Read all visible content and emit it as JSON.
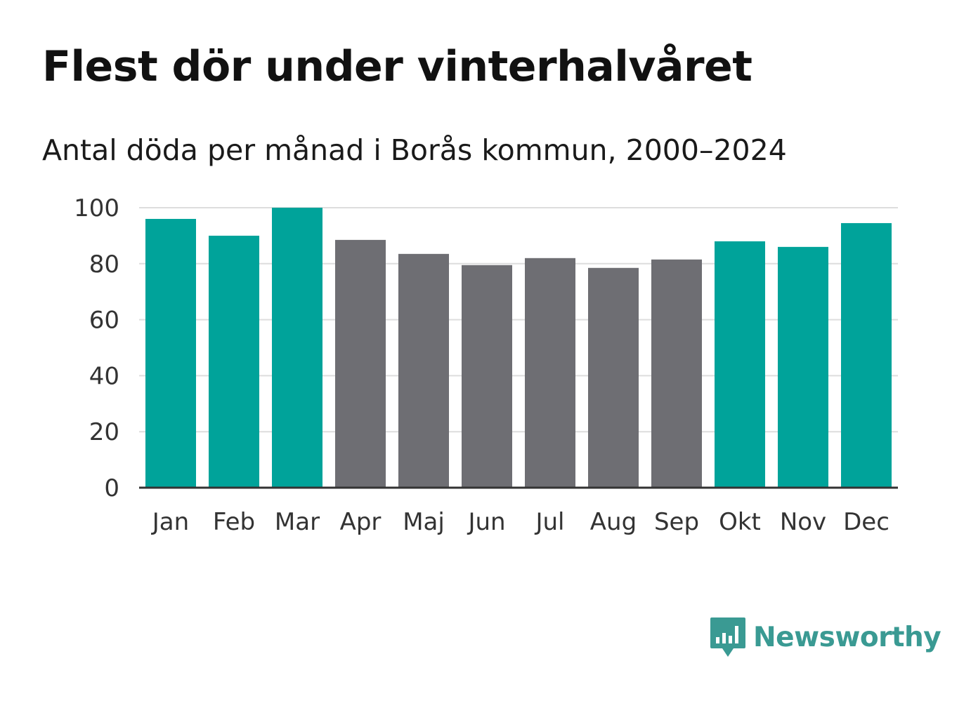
{
  "colors": {
    "winter": "#00a39a",
    "summer": "#6e6e73",
    "grid": "#dddddd",
    "axis": "#333333",
    "logo": "#3a9a93"
  },
  "chart_data": {
    "type": "bar",
    "title": "Flest dör under vinterhalvåret",
    "subtitle": "Antal döda per månad i Borås kommun, 2000–2024",
    "categories": [
      "Jan",
      "Feb",
      "Mar",
      "Apr",
      "Maj",
      "Jun",
      "Jul",
      "Aug",
      "Sep",
      "Okt",
      "Nov",
      "Dec"
    ],
    "values": [
      96,
      90,
      100,
      88.5,
      83.5,
      79.5,
      82,
      78.5,
      81.5,
      88,
      86,
      94.5
    ],
    "groups": [
      "winter",
      "winter",
      "winter",
      "summer",
      "summer",
      "summer",
      "summer",
      "summer",
      "summer",
      "winter",
      "winter",
      "winter"
    ],
    "yticks": [
      0,
      20,
      40,
      60,
      80,
      100
    ],
    "ylim": [
      0,
      100
    ],
    "xlabel": "",
    "ylabel": "",
    "grid": true
  },
  "logo": {
    "text": "Newsworthy",
    "icon": "bar-chart-speech-bubble-icon"
  }
}
